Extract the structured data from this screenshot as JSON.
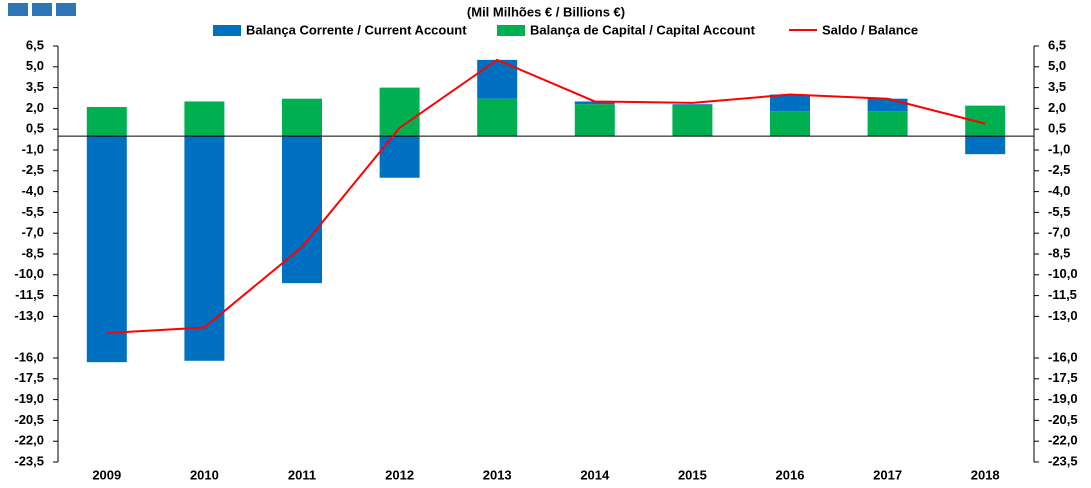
{
  "chart_data": {
    "type": "stacked-bar-line",
    "title": "(Mil Milhões € / Billions €)",
    "categories": [
      "2009",
      "2010",
      "2011",
      "2012",
      "2013",
      "2014",
      "2015",
      "2016",
      "2017",
      "2018"
    ],
    "series": [
      {
        "name": "Balança Corrente / Current Account",
        "color": "#0070c0",
        "kind": "bar",
        "values": [
          -16.3,
          -16.2,
          -10.6,
          -3.0,
          2.8,
          0.2,
          0.1,
          1.2,
          0.9,
          -1.3
        ]
      },
      {
        "name": "Balança de Capital / Capital Account",
        "color": "#00b050",
        "kind": "bar",
        "values": [
          2.1,
          2.5,
          2.7,
          3.5,
          2.7,
          2.3,
          2.2,
          1.8,
          1.8,
          2.2
        ]
      },
      {
        "name": "Saldo / Balance",
        "color": "#ff0000",
        "kind": "line",
        "values": [
          -14.2,
          -13.8,
          -8.0,
          0.6,
          5.5,
          2.5,
          2.4,
          3.0,
          2.7,
          0.9
        ]
      }
    ],
    "ylim": [
      -23.5,
      6.5
    ],
    "yticks": [
      {
        "value": 6.5,
        "label": "6,5"
      },
      {
        "value": 5.0,
        "label": "5,0"
      },
      {
        "value": 3.5,
        "label": "3,5"
      },
      {
        "value": 2.0,
        "label": "2,0"
      },
      {
        "value": 0.5,
        "label": "0,5"
      },
      {
        "value": -1.0,
        "label": "-1,0"
      },
      {
        "value": -2.5,
        "label": "-2,5"
      },
      {
        "value": -4.0,
        "label": "-4,0"
      },
      {
        "value": -5.5,
        "label": "-5,5"
      },
      {
        "value": -7.0,
        "label": "-7,0"
      },
      {
        "value": -8.5,
        "label": "-8,5"
      },
      {
        "value": -10.0,
        "label": "-10,0"
      },
      {
        "value": -11.5,
        "label": "-11,5"
      },
      {
        "value": -13.0,
        "label": "-13,0"
      },
      {
        "value": -16.0,
        "label": "-16,0"
      },
      {
        "value": -17.5,
        "label": "-17,5"
      },
      {
        "value": -19.0,
        "label": "-19,0"
      },
      {
        "value": -20.5,
        "label": "-20,5"
      },
      {
        "value": -22.0,
        "label": "-22,0"
      },
      {
        "value": -23.5,
        "label": "-23,5"
      }
    ]
  }
}
